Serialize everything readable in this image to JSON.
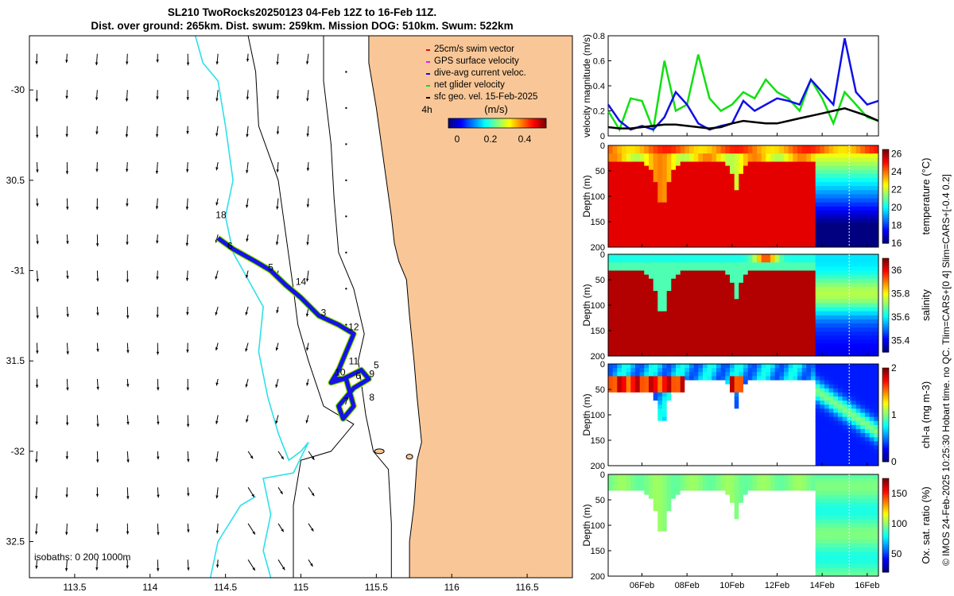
{
  "title": {
    "line1": "SL210 TwoRocks20250123 04-Feb 12Z to 16-Feb 11Z.",
    "line2": "Dist. over ground: 265km. Dist. swum: 259km. Mission DOG: 510km. Swum: 522km"
  },
  "colors": {
    "ocean": "#ffffff",
    "land": "#f9c797",
    "coast": "#000000",
    "isobath200": "#000000",
    "isobath1000": "#2ee0e8",
    "track": "#1a10e8"
  },
  "map": {
    "lon_ticks": [
      "113.5",
      "114",
      "114.5",
      "115",
      "115.5",
      "116",
      "116.5"
    ],
    "lat_ticks": [
      "-30",
      "30.5",
      "-31",
      "31.5",
      "-32",
      "32.5"
    ],
    "lon_range": [
      113.2,
      116.8
    ],
    "lat_range": [
      -29.7,
      -32.7
    ],
    "isobaths_label": "isobaths: 0   200  1000m",
    "scale_label": "4h",
    "colorbar": {
      "title": "(m/s)",
      "ticks": [
        "0",
        "0.2",
        "0.4"
      ]
    },
    "day_labels": [
      "18",
      "6",
      "5",
      "14",
      "3",
      "12",
      "11",
      "5",
      "10",
      "6",
      "9",
      "7",
      "8"
    ]
  },
  "legend": [
    {
      "label": "25cm/s swim vector",
      "color": "#e01010"
    },
    {
      "label": "GPS surface velocity",
      "color": "#e020e0"
    },
    {
      "label": "dive-avg current veloc.",
      "color": "#1010e8"
    },
    {
      "label": "net glider velocity",
      "color": "#10e010"
    },
    {
      "label": "sfc geo. vel. 15-Feb-2025",
      "color": "#000000"
    }
  ],
  "chart_data": [
    {
      "type": "line",
      "title": "",
      "ylabel": "velocity magnitude (m/s)",
      "ylim": [
        0,
        0.8
      ],
      "yticks": [
        "0",
        "0.2",
        "0.4",
        "0.6",
        "0.8"
      ],
      "x_days": [
        4.5,
        5,
        5.5,
        6,
        6.5,
        7,
        7.5,
        8,
        8.5,
        9,
        9.5,
        10,
        10.5,
        11,
        11.5,
        12,
        12.5,
        13,
        13.5,
        14,
        14.5,
        15,
        15.5,
        16,
        16.5
      ],
      "series": [
        {
          "name": "net glider velocity",
          "color": "#10e010",
          "values": [
            0.2,
            0.05,
            0.3,
            0.28,
            0.05,
            0.6,
            0.2,
            0.25,
            0.65,
            0.3,
            0.2,
            0.25,
            0.35,
            0.3,
            0.45,
            0.35,
            0.3,
            0.2,
            0.45,
            0.3,
            0.1,
            0.35,
            0.25,
            0.15,
            0.12
          ]
        },
        {
          "name": "dive-avg current veloc.",
          "color": "#1010e8",
          "values": [
            0.25,
            0.12,
            0.05,
            0.08,
            0.05,
            0.15,
            0.35,
            0.25,
            0.1,
            0.05,
            0.08,
            0.1,
            0.28,
            0.2,
            0.25,
            0.3,
            0.28,
            0.25,
            0.45,
            0.35,
            0.25,
            0.78,
            0.35,
            0.25,
            0.28
          ]
        },
        {
          "name": "sfc geo. vel.",
          "color": "#000000",
          "values": [
            0.07,
            0.06,
            0.06,
            0.07,
            0.08,
            0.09,
            0.09,
            0.08,
            0.07,
            0.06,
            0.07,
            0.1,
            0.12,
            0.11,
            0.1,
            0.1,
            0.12,
            0.14,
            0.16,
            0.18,
            0.2,
            0.22,
            0.19,
            0.16,
            0.12
          ]
        }
      ]
    },
    {
      "type": "heatmap",
      "ylabel": "Depth (m)",
      "yticks": [
        "0",
        "50",
        "100",
        "150",
        "200"
      ],
      "colorbar_label": "temperature (°C)",
      "colorbar_ticks": [
        "16",
        "18",
        "20",
        "22",
        "24",
        "26"
      ],
      "crange": [
        16,
        26.5
      ]
    },
    {
      "type": "heatmap",
      "ylabel": "Depth (m)",
      "yticks": [
        "0",
        "50",
        "100",
        "150",
        "200"
      ],
      "colorbar_label": "salinity",
      "colorbar_ticks": [
        "35.4",
        "35.6",
        "35.8",
        "36"
      ],
      "crange": [
        35.3,
        36.1
      ]
    },
    {
      "type": "heatmap",
      "ylabel": "Depth (m)",
      "yticks": [
        "0",
        "50",
        "100",
        "150",
        "200"
      ],
      "colorbar_label": "chl-a (mg m-3)",
      "colorbar_ticks": [
        "0",
        "1",
        "2"
      ],
      "crange": [
        0,
        2
      ]
    },
    {
      "type": "heatmap",
      "ylabel": "Depth (m)",
      "yticks": [
        "0",
        "50",
        "100",
        "150",
        "200"
      ],
      "colorbar_label": "Ox. sat. ratio (%)",
      "colorbar_ticks": [
        "50",
        "100",
        "150"
      ],
      "crange": [
        20,
        175
      ]
    }
  ],
  "time_axis": {
    "ticks": [
      "06Feb",
      "08Feb",
      "10Feb",
      "12Feb",
      "14Feb",
      "16Feb"
    ],
    "tick_days": [
      6,
      8,
      10,
      12,
      14,
      16
    ],
    "range": [
      4.5,
      16.5
    ]
  },
  "credit": "© IMOS 24-Feb-2025 10:25:30 Hobart time. no QC. Tlim=CARS+[0 4] Slim=CARS+[-0.4 0.2]"
}
